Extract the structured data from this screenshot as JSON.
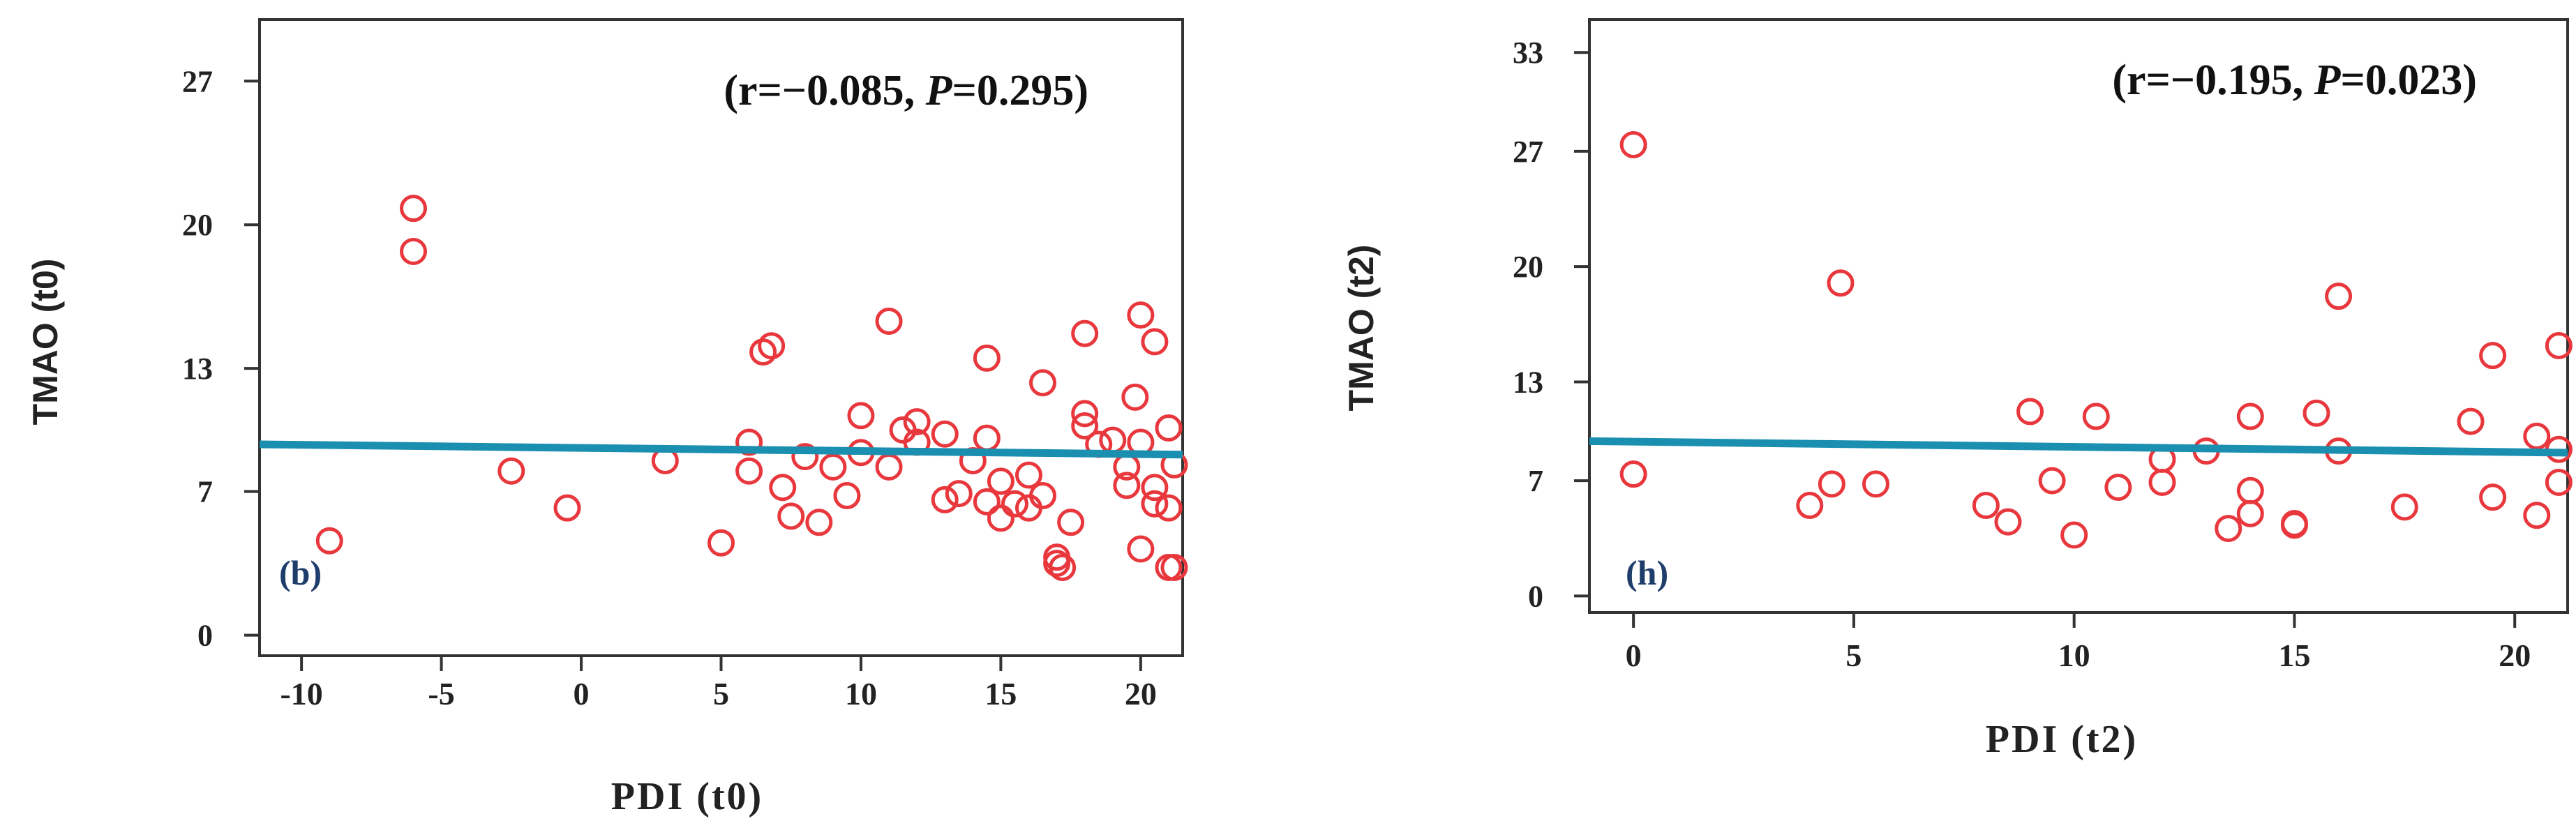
{
  "colors": {
    "points": "#e8383d",
    "fit_line": "#1b8fb0",
    "axis": "#333333"
  },
  "chart_data": [
    {
      "type": "scatter",
      "panel_label": "(b)",
      "xlabel": "PDI (t0)",
      "ylabel": "TMAO (t0)",
      "xlim": [
        -11.5,
        21.5
      ],
      "ylim": [
        -1,
        30
      ],
      "xticks": [
        -10,
        -5,
        0,
        5,
        10,
        15,
        20
      ],
      "xtick_labels": [
        "-10",
        "-5",
        "0",
        "5",
        "10",
        "15",
        "20"
      ],
      "yticks": [
        0,
        7,
        13,
        20,
        27
      ],
      "ytick_labels": [
        "0",
        "7",
        "13",
        "20",
        "27"
      ],
      "annotation": {
        "pre": "(r=−0.085, ",
        "p": "P",
        "post": "=0.295)"
      },
      "fit_line": {
        "x": [
          -11.5,
          21.5
        ],
        "y": [
          9.3,
          8.8
        ]
      },
      "points": [
        [
          -9,
          4.6
        ],
        [
          -6,
          20.8
        ],
        [
          -6,
          18.7
        ],
        [
          -2.5,
          8
        ],
        [
          -0.5,
          6.2
        ],
        [
          3,
          8.5
        ],
        [
          5,
          4.5
        ],
        [
          6,
          9.4
        ],
        [
          6,
          8
        ],
        [
          6.5,
          13.8
        ],
        [
          6.8,
          14.1
        ],
        [
          7.2,
          7.2
        ],
        [
          7.5,
          5.8
        ],
        [
          8,
          8.7
        ],
        [
          8.5,
          5.5
        ],
        [
          9,
          8.2
        ],
        [
          9.5,
          6.8
        ],
        [
          10,
          10.7
        ],
        [
          10,
          8.9
        ],
        [
          11,
          8.2
        ],
        [
          11,
          15.3
        ],
        [
          11.5,
          10
        ],
        [
          12,
          10.4
        ],
        [
          12,
          9.4
        ],
        [
          13,
          9.8
        ],
        [
          13,
          6.6
        ],
        [
          13.5,
          6.9
        ],
        [
          14,
          8.5
        ],
        [
          14.5,
          9.6
        ],
        [
          14.5,
          6.5
        ],
        [
          14.5,
          13.5
        ],
        [
          15,
          7.5
        ],
        [
          15,
          5.7
        ],
        [
          15.5,
          6.4
        ],
        [
          16,
          7.8
        ],
        [
          16,
          6.2
        ],
        [
          16.5,
          12.3
        ],
        [
          16.5,
          6.8
        ],
        [
          17,
          3.8
        ],
        [
          17,
          3.5
        ],
        [
          17.2,
          3.3
        ],
        [
          17.5,
          5.5
        ],
        [
          18,
          14.7
        ],
        [
          18,
          10.8
        ],
        [
          18,
          10.2
        ],
        [
          18.5,
          9.3
        ],
        [
          19,
          9.5
        ],
        [
          19.5,
          7.3
        ],
        [
          19.5,
          8.2
        ],
        [
          19.8,
          11.6
        ],
        [
          20,
          15.6
        ],
        [
          20,
          9.4
        ],
        [
          20,
          4.2
        ],
        [
          20.5,
          14.3
        ],
        [
          20.5,
          6.4
        ],
        [
          20.5,
          7.2
        ],
        [
          21,
          3.3
        ],
        [
          21,
          6.2
        ],
        [
          21,
          10.1
        ],
        [
          21.2,
          8.3
        ],
        [
          21.2,
          3.3
        ]
      ]
    },
    {
      "type": "scatter",
      "panel_label": "(h)",
      "xlabel": "PDI (t2)",
      "ylabel": "TMAO (t2)",
      "xlim": [
        -1,
        21.2
      ],
      "ylim": [
        -1,
        35
      ],
      "xticks": [
        0,
        5,
        10,
        15,
        20
      ],
      "xtick_labels": [
        "0",
        "5",
        "10",
        "15",
        "20"
      ],
      "yticks": [
        0,
        7,
        13,
        20,
        27,
        33
      ],
      "ytick_labels": [
        "0",
        "7",
        "13",
        "20",
        "27",
        "33"
      ],
      "annotation": {
        "pre": "(r=−0.195, ",
        "p": "P",
        "post": "=0.023)"
      },
      "fit_line": {
        "x": [
          -1,
          21.2
        ],
        "y": [
          9.4,
          8.7
        ]
      },
      "points": [
        [
          0,
          27.4
        ],
        [
          0,
          7.4
        ],
        [
          4,
          5.5
        ],
        [
          4.5,
          6.8
        ],
        [
          4.7,
          19
        ],
        [
          5.5,
          6.8
        ],
        [
          8,
          5.5
        ],
        [
          8.5,
          4.5
        ],
        [
          9,
          11.2
        ],
        [
          9.5,
          7
        ],
        [
          10,
          3.7
        ],
        [
          10.5,
          10.9
        ],
        [
          11,
          6.6
        ],
        [
          12,
          8.3
        ],
        [
          12,
          6.9
        ],
        [
          13,
          8.8
        ],
        [
          13.5,
          4.1
        ],
        [
          14,
          10.9
        ],
        [
          14,
          6.4
        ],
        [
          14,
          5
        ],
        [
          15,
          4.3
        ],
        [
          15,
          4.4
        ],
        [
          15.5,
          11.1
        ],
        [
          16,
          18.2
        ],
        [
          16,
          8.8
        ],
        [
          17.5,
          5.4
        ],
        [
          19,
          10.6
        ],
        [
          19.5,
          14.6
        ],
        [
          19.5,
          6
        ],
        [
          20.5,
          9.7
        ],
        [
          20.5,
          4.9
        ],
        [
          21,
          15.2
        ],
        [
          21,
          6.9
        ],
        [
          21,
          8.9
        ]
      ]
    }
  ]
}
